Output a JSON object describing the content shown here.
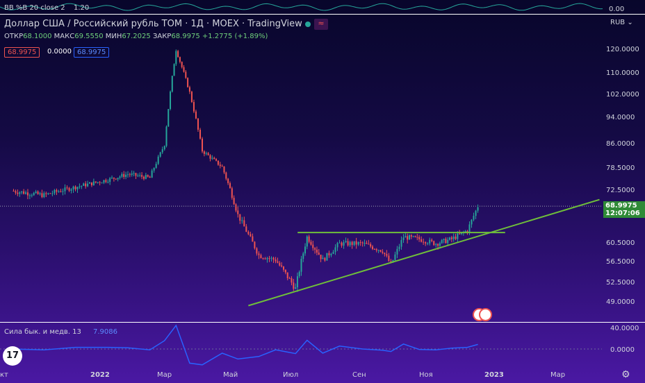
{
  "top_indicator": {
    "label": "BB %B 20 close 2",
    "value": "1.20",
    "axis_value": "0.00"
  },
  "header": {
    "title": "Доллар США / Российский рубль TOM · 1Д · MOEX · TradingView",
    "ohlc": {
      "open_label": "ОТКР",
      "open": "68.1000",
      "high_label": "МАКС",
      "high": "69.5550",
      "low_label": "МИН",
      "low": "67.2025",
      "close_label": "ЗАКР",
      "close": "68.9975",
      "change": "+1.2775 (+1.89%)"
    },
    "badges": [
      "68.9975",
      "0.0000",
      "68.9975"
    ]
  },
  "currency": "RUB",
  "price_label": {
    "price": "68.9975",
    "countdown": "12:07:06"
  },
  "bottom_indicator": {
    "label": "Сила бык. и медв. 13",
    "value": "7.9086",
    "axis_ticks": [
      "40.0000",
      "0.0000"
    ]
  },
  "colors": {
    "up": "#26a69a",
    "down": "#ef5350",
    "trendline": "#6fbf3a",
    "price_line": "#2f8a37",
    "indicator": "#2962ff"
  },
  "chart_data": {
    "type": "candlestick",
    "title": "Доллар США / Российский рубль TOM · 1Д · MOEX · TradingView",
    "y_ticks": [
      120.0,
      110.0,
      102.0,
      94.0,
      86.0,
      78.5,
      72.5,
      60.5,
      56.5,
      52.5,
      49.0
    ],
    "y_tick_labels": [
      "120.0000",
      "110.0000",
      "102.0000",
      "94.0000",
      "86.0000",
      "78.5000",
      "72.5000",
      "60.5000",
      "56.5000",
      "52.5000",
      "49.0000"
    ],
    "x_tick_labels": [
      "кт",
      "2022",
      "Мар",
      "Май",
      "Июл",
      "Сен",
      "Ноя",
      "2023",
      "Мар"
    ],
    "close_series": [
      {
        "date": "2021-10",
        "close": 72.5
      },
      {
        "date": "2021-11",
        "close": 71.5
      },
      {
        "date": "2021-12",
        "close": 73.5
      },
      {
        "date": "2022-01",
        "close": 75.5
      },
      {
        "date": "2022-01-20",
        "close": 77.0
      },
      {
        "date": "2022-02-10",
        "close": 76.0
      },
      {
        "date": "2022-02-24",
        "close": 86.0
      },
      {
        "date": "2022-03-07",
        "close": 120.0
      },
      {
        "date": "2022-03-20",
        "close": 103.0
      },
      {
        "date": "2022-04-01",
        "close": 84.0
      },
      {
        "date": "2022-04-20",
        "close": 79.0
      },
      {
        "date": "2022-05-05",
        "close": 67.0
      },
      {
        "date": "2022-05-25",
        "close": 58.0
      },
      {
        "date": "2022-06-10",
        "close": 57.0
      },
      {
        "date": "2022-06-29",
        "close": 51.5
      },
      {
        "date": "2022-07-10",
        "close": 62.0
      },
      {
        "date": "2022-07-25",
        "close": 57.0
      },
      {
        "date": "2022-08-10",
        "close": 60.5
      },
      {
        "date": "2022-09-01",
        "close": 60.5
      },
      {
        "date": "2022-09-20",
        "close": 59.0
      },
      {
        "date": "2022-09-28",
        "close": 56.0
      },
      {
        "date": "2022-10-10",
        "close": 62.0
      },
      {
        "date": "2022-10-25",
        "close": 61.5
      },
      {
        "date": "2022-11-10",
        "close": 60.5
      },
      {
        "date": "2022-11-25",
        "close": 61.5
      },
      {
        "date": "2022-12-10",
        "close": 63.5
      },
      {
        "date": "2022-12-20",
        "close": 68.9975
      }
    ],
    "horizontal_line": 63.0,
    "trendline": [
      {
        "date": "2022-05-15",
        "value": 48.5
      },
      {
        "date": "2023-04-15",
        "value": 70.5
      }
    ],
    "current_price": 68.9975
  }
}
